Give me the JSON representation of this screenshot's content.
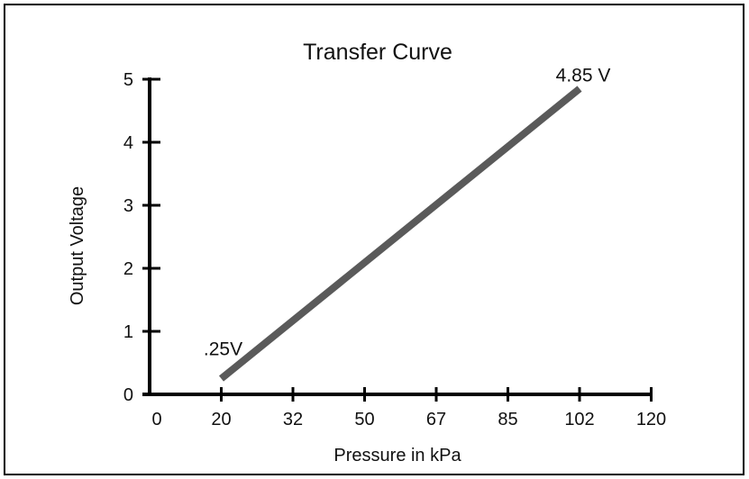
{
  "chart_data": {
    "type": "line",
    "title": "Transfer Curve",
    "xlabel": "Pressure in kPa",
    "ylabel": "Output Voltage",
    "x_tick_labels": [
      "0",
      "20",
      "32",
      "50",
      "67",
      "85",
      "102",
      "120"
    ],
    "y_tick_labels": [
      "0",
      "1",
      "2",
      "3",
      "4",
      "5"
    ],
    "ylim": [
      0,
      5
    ],
    "grid": false,
    "series": [
      {
        "points": [
          {
            "x": 20,
            "y": 0.25
          },
          {
            "x": 102,
            "y": 4.85
          }
        ]
      }
    ],
    "annotations": [
      {
        "text": ".25V",
        "x": 20,
        "y": 0.25
      },
      {
        "text": "4.85 V",
        "x": 102,
        "y": 4.85
      }
    ],
    "colors": {
      "line": "#5a5a5a",
      "axis": "#000000",
      "border": "#000000"
    }
  }
}
